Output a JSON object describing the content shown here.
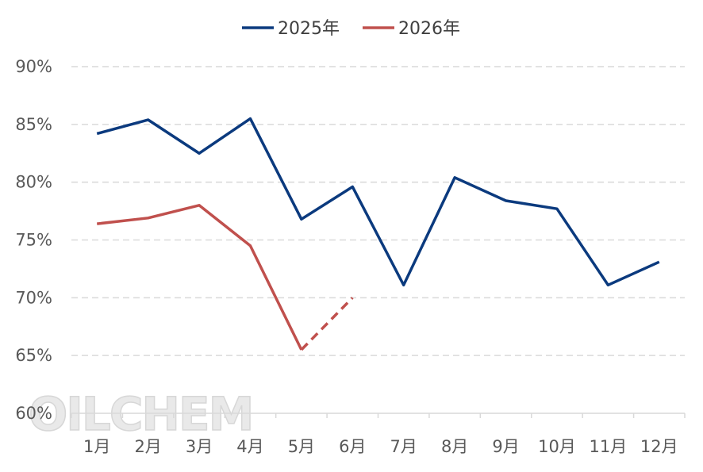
{
  "chart_data": {
    "type": "line",
    "categories": [
      "1月",
      "2月",
      "3月",
      "4月",
      "5月",
      "6月",
      "7月",
      "8月",
      "9月",
      "10月",
      "11月",
      "12月"
    ],
    "series": [
      {
        "name": "2025年",
        "color": "#0b3a7e",
        "values": [
          84.2,
          85.4,
          82.5,
          85.5,
          76.8,
          79.6,
          71.1,
          80.4,
          78.4,
          77.7,
          71.1,
          73.1
        ]
      },
      {
        "name": "2026年",
        "color": "#c0504d",
        "values": [
          76.4,
          76.9,
          78.0,
          74.5,
          65.5,
          70.0,
          null,
          null,
          null,
          null,
          null,
          null
        ],
        "dashed_from_index": 4
      }
    ],
    "y_ticks": [
      "90%",
      "85%",
      "80%",
      "75%",
      "70%",
      "65%",
      "60%"
    ],
    "ylim": [
      60,
      90
    ],
    "y_step": 5,
    "grid": true,
    "legend_position": "top-center",
    "watermark": "OILCHEM"
  }
}
